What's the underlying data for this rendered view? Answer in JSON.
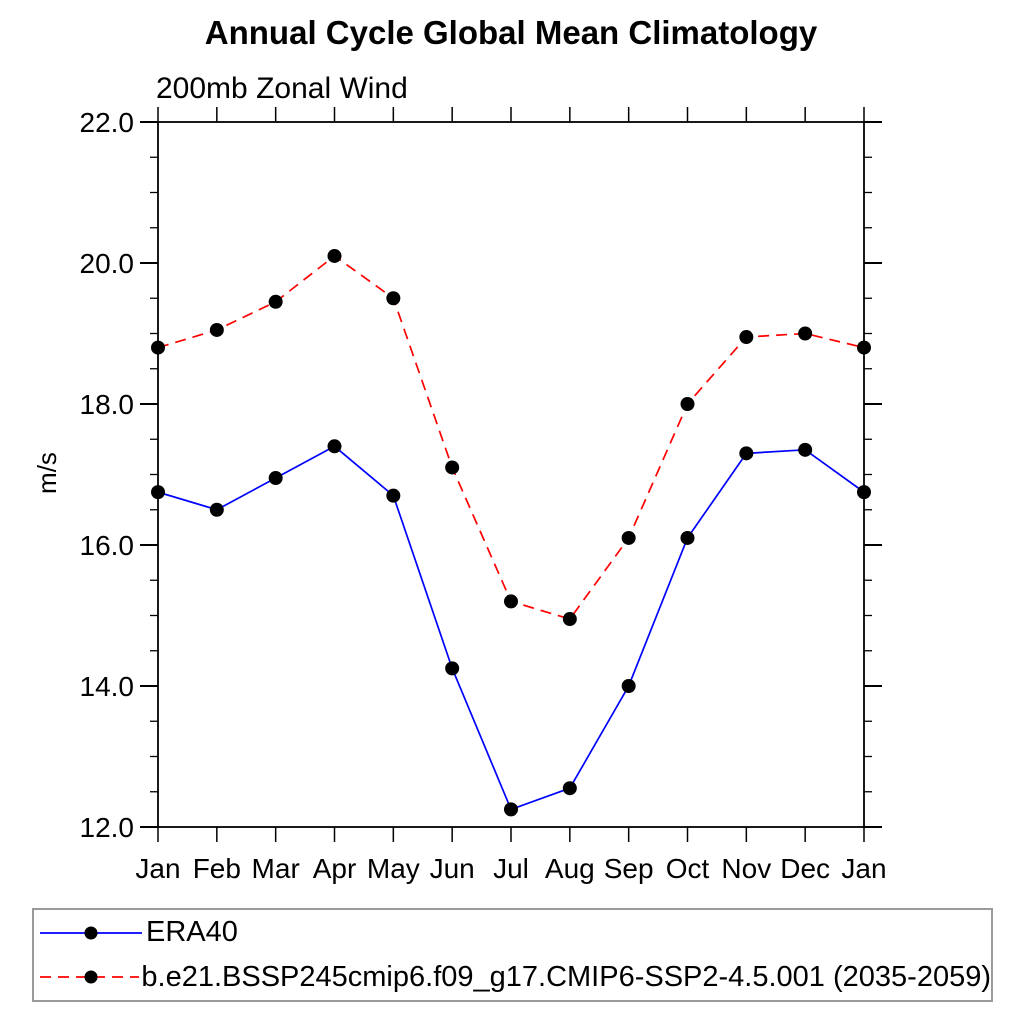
{
  "chart_data": {
    "type": "line",
    "title": "Annual Cycle Global Mean Climatology",
    "subtitle": "200mb Zonal Wind",
    "ylabel": "m/s",
    "categories": [
      "Jan",
      "Feb",
      "Mar",
      "Apr",
      "May",
      "Jun",
      "Jul",
      "Aug",
      "Sep",
      "Oct",
      "Nov",
      "Dec",
      "Jan"
    ],
    "ylim": [
      12.0,
      22.0
    ],
    "ytick_major": 2.0,
    "ytick_minor": 0.5,
    "grid": false,
    "legend_position": "bottom-left-box",
    "series": [
      {
        "name": "ERA40",
        "color": "#0000ff",
        "line_style": "solid",
        "marker": "filled-circle",
        "marker_color": "#000000",
        "values": [
          16.75,
          16.5,
          16.95,
          17.4,
          16.7,
          14.25,
          12.25,
          12.55,
          14.0,
          16.1,
          17.3,
          17.35,
          16.75
        ]
      },
      {
        "name": "b.e21.BSSP245cmip6.f09_g17.CMIP6-SSP2-4.5.001 (2035-2059)",
        "color": "#ff0000",
        "line_style": "dashed",
        "marker": "filled-circle",
        "marker_color": "#000000",
        "values": [
          18.8,
          19.05,
          19.45,
          20.1,
          19.5,
          17.1,
          15.2,
          14.95,
          16.1,
          18.0,
          18.95,
          19.0,
          18.8
        ]
      }
    ]
  },
  "colors": {
    "axis": "#000000",
    "text": "#000000",
    "legend_border": "#9a9a9a",
    "background": "#ffffff",
    "era40_line": "#0000ff",
    "model_line": "#ff0000",
    "marker": "#000000"
  }
}
